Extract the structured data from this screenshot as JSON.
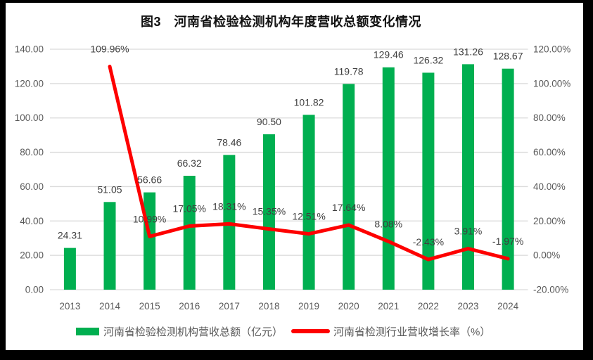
{
  "chart_data": {
    "type": "bar+line",
    "title": "图3　河南省检验检测机构年度营收总额变化情况",
    "categories": [
      "2013",
      "2014",
      "2015",
      "2016",
      "2017",
      "2018",
      "2019",
      "2020",
      "2021",
      "2022",
      "2023",
      "2024"
    ],
    "series": [
      {
        "name": "河南省检验检测机构营收总额（亿元）",
        "type": "bar",
        "axis": "left",
        "values": [
          24.31,
          51.05,
          56.66,
          66.32,
          78.46,
          90.5,
          101.82,
          119.78,
          129.46,
          126.32,
          131.26,
          128.67
        ],
        "labels": [
          "24.31",
          "51.05",
          "56.66",
          "66.32",
          "78.46",
          "90.50",
          "101.82",
          "119.78",
          "129.46",
          "126.32",
          "131.26",
          "128.67"
        ]
      },
      {
        "name": "河南省检测行业营收增长率（%）",
        "type": "line",
        "axis": "right",
        "values": [
          null,
          109.96,
          10.99,
          17.05,
          18.31,
          15.35,
          12.51,
          17.64,
          8.08,
          -2.43,
          3.91,
          -1.97
        ],
        "labels": [
          "",
          "109.96%",
          "10.99%",
          "17.05%",
          "18.31%",
          "15.35%",
          "12.51%",
          "17.64%",
          "8.08%",
          "-2.43%",
          "3.91%",
          "-1.97%"
        ]
      }
    ],
    "left_axis": {
      "min": 0,
      "max": 140,
      "step": 20,
      "tick_labels": [
        "0.00",
        "20.00",
        "40.00",
        "60.00",
        "80.00",
        "100.00",
        "120.00",
        "140.00"
      ]
    },
    "right_axis": {
      "min": -20,
      "max": 120,
      "step": 20,
      "tick_labels": [
        "-20.00%",
        "0.00%",
        "20.00%",
        "40.00%",
        "60.00%",
        "80.00%",
        "100.00%",
        "120.00%"
      ]
    },
    "grid": "horizontal-only",
    "legend_position": "bottom"
  },
  "colors": {
    "bar": "#00AF50",
    "line": "#FE0000",
    "gridline": "#D9D9D9",
    "axis_text": "#595959",
    "data_label": "#3F3F3F",
    "title_text": "#111111",
    "frame": "#000000",
    "background": "#FFFFFF"
  }
}
